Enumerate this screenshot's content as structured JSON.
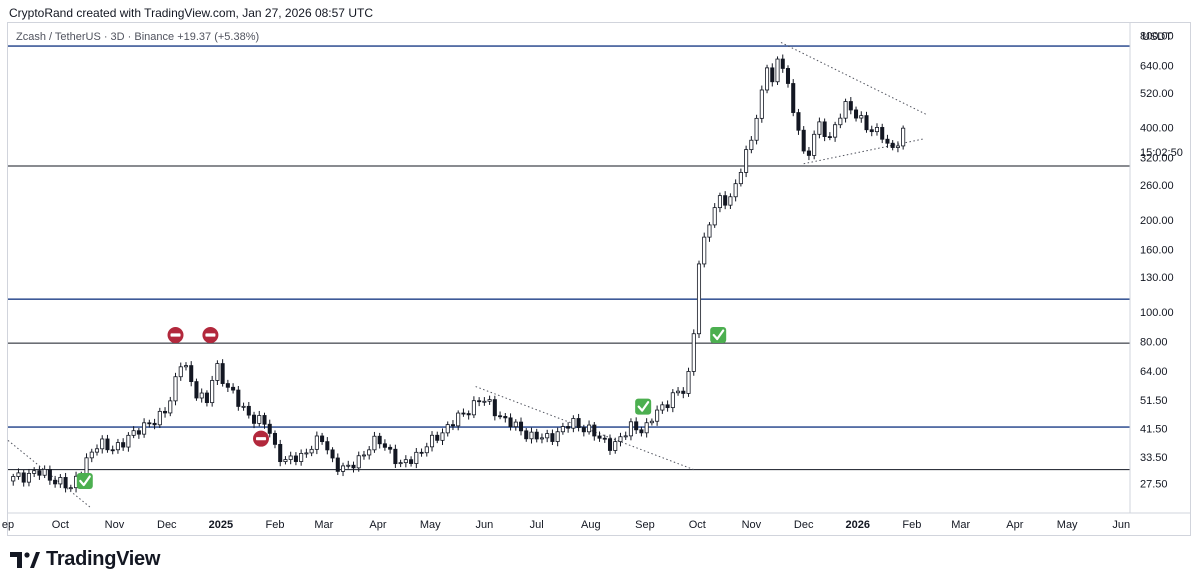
{
  "header": {
    "attribution": "CryptoRand created with TradingView.com, Jan 27, 2026 08:57 UTC"
  },
  "symbol_info": "Zcash / TetherUS · 3D · Binance  +19.37 (+5.38%)",
  "countdown": "15:02:50",
  "footer": {
    "brand": "TradingView"
  },
  "colors": {
    "candle_up_fill": "#ffffff",
    "candle_down_fill": "#131722",
    "blue_level": "#3d5a98",
    "black_level": "#131722",
    "stop_sign": "#b2283c",
    "check": "#4caf50"
  },
  "chart_data": {
    "type": "candlestick",
    "scale": "log",
    "quote_currency": "USDT",
    "y_ticks": [
      "800.00",
      "640.00",
      "520.00",
      "400.00",
      "320.00",
      "260.00",
      "200.00",
      "160.00",
      "130.00",
      "100.00",
      "80.00",
      "64.00",
      "51.50",
      "41.50",
      "33.50",
      "27.50"
    ],
    "ylim": [
      22,
      880
    ],
    "x_range": [
      "2024-09-01",
      "2026-06-06"
    ],
    "x_ticks": [
      {
        "label": "ep",
        "date": "2024-09-01",
        "bold": false
      },
      {
        "label": "Oct",
        "date": "2024-10-01",
        "bold": false
      },
      {
        "label": "Nov",
        "date": "2024-11-01",
        "bold": false
      },
      {
        "label": "Dec",
        "date": "2024-12-01",
        "bold": false
      },
      {
        "label": "2025",
        "date": "2025-01-01",
        "bold": true
      },
      {
        "label": "Feb",
        "date": "2025-02-01",
        "bold": false
      },
      {
        "label": "Mar",
        "date": "2025-03-01",
        "bold": false
      },
      {
        "label": "Apr",
        "date": "2025-04-01",
        "bold": false
      },
      {
        "label": "May",
        "date": "2025-05-01",
        "bold": false
      },
      {
        "label": "Jun",
        "date": "2025-06-01",
        "bold": false
      },
      {
        "label": "Jul",
        "date": "2025-07-01",
        "bold": false
      },
      {
        "label": "Aug",
        "date": "2025-08-01",
        "bold": false
      },
      {
        "label": "Sep",
        "date": "2025-09-01",
        "bold": false
      },
      {
        "label": "Oct",
        "date": "2025-10-01",
        "bold": false
      },
      {
        "label": "Nov",
        "date": "2025-11-01",
        "bold": false
      },
      {
        "label": "Dec",
        "date": "2025-12-01",
        "bold": false
      },
      {
        "label": "2026",
        "date": "2026-01-01",
        "bold": true
      },
      {
        "label": "Feb",
        "date": "2026-02-01",
        "bold": false
      },
      {
        "label": "Mar",
        "date": "2026-03-01",
        "bold": false
      },
      {
        "label": "Apr",
        "date": "2026-04-01",
        "bold": false
      },
      {
        "label": "May",
        "date": "2026-05-01",
        "bold": false
      },
      {
        "label": "Jun",
        "date": "2026-06-01",
        "bold": false
      }
    ],
    "close_path": [
      [
        "2024-09-01",
        28
      ],
      [
        "2024-09-16",
        30
      ],
      [
        "2024-10-01",
        28
      ],
      [
        "2024-10-07",
        26
      ],
      [
        "2024-10-14",
        32
      ],
      [
        "2024-10-24",
        37
      ],
      [
        "2024-11-05",
        36
      ],
      [
        "2024-11-14",
        42
      ],
      [
        "2024-11-24",
        43
      ],
      [
        "2024-12-03",
        52
      ],
      [
        "2024-12-10",
        70
      ],
      [
        "2024-12-14",
        61
      ],
      [
        "2024-12-18",
        55
      ],
      [
        "2024-12-24",
        50
      ],
      [
        "2024-12-29",
        68
      ],
      [
        "2025-01-04",
        58
      ],
      [
        "2025-01-11",
        50
      ],
      [
        "2025-01-20",
        45
      ],
      [
        "2025-01-28",
        42
      ],
      [
        "2025-02-02",
        35
      ],
      [
        "2025-02-08",
        32
      ],
      [
        "2025-02-16",
        34
      ],
      [
        "2025-02-23",
        37
      ],
      [
        "2025-03-01",
        38
      ],
      [
        "2025-03-07",
        32
      ],
      [
        "2025-03-14",
        30
      ],
      [
        "2025-03-22",
        34
      ],
      [
        "2025-04-01",
        38
      ],
      [
        "2025-04-07",
        36
      ],
      [
        "2025-04-14",
        31
      ],
      [
        "2025-04-22",
        34
      ],
      [
        "2025-05-01",
        37
      ],
      [
        "2025-05-10",
        42
      ],
      [
        "2025-05-20",
        46
      ],
      [
        "2025-05-28",
        52
      ],
      [
        "2025-06-03",
        50
      ],
      [
        "2025-06-10",
        46
      ],
      [
        "2025-06-18",
        42
      ],
      [
        "2025-06-26",
        40
      ],
      [
        "2025-07-05",
        38
      ],
      [
        "2025-07-14",
        41
      ],
      [
        "2025-07-22",
        43
      ],
      [
        "2025-07-30",
        42
      ],
      [
        "2025-08-06",
        38
      ],
      [
        "2025-08-14",
        37
      ],
      [
        "2025-08-20",
        39
      ],
      [
        "2025-08-25",
        43
      ],
      [
        "2025-09-01",
        41
      ],
      [
        "2025-09-08",
        47
      ],
      [
        "2025-09-16",
        53
      ],
      [
        "2025-09-24",
        55
      ],
      [
        "2025-09-28",
        70
      ],
      [
        "2025-10-01",
        140
      ],
      [
        "2025-10-04",
        160
      ],
      [
        "2025-10-08",
        195
      ],
      [
        "2025-10-14",
        240
      ],
      [
        "2025-10-20",
        230
      ],
      [
        "2025-10-26",
        290
      ],
      [
        "2025-11-01",
        380
      ],
      [
        "2025-11-06",
        470
      ],
      [
        "2025-11-10",
        640
      ],
      [
        "2025-11-13",
        560
      ],
      [
        "2025-11-17",
        720
      ],
      [
        "2025-11-20",
        620
      ],
      [
        "2025-11-24",
        460
      ],
      [
        "2025-11-28",
        400
      ],
      [
        "2025-12-02",
        310
      ],
      [
        "2025-12-06",
        370
      ],
      [
        "2025-12-10",
        400
      ],
      [
        "2025-12-16",
        370
      ],
      [
        "2025-12-20",
        430
      ],
      [
        "2025-12-26",
        470
      ],
      [
        "2025-12-31",
        440
      ],
      [
        "2026-01-04",
        430
      ],
      [
        "2026-01-09",
        380
      ],
      [
        "2026-01-14",
        390
      ],
      [
        "2026-01-19",
        345
      ],
      [
        "2026-01-24",
        355
      ],
      [
        "2026-01-27",
        378
      ]
    ],
    "horizontal_levels": [
      {
        "price": 740,
        "color": "blue"
      },
      {
        "price": 300,
        "color": "black"
      },
      {
        "price": 110,
        "color": "blue"
      },
      {
        "price": 79,
        "color": "black"
      },
      {
        "price": 42,
        "color": "blue"
      },
      {
        "price": 30.5,
        "color": "black"
      }
    ],
    "trendlines": [
      {
        "from": [
          "2024-09-01",
          38
        ],
        "to": [
          "2024-10-18",
          23
        ]
      },
      {
        "from": [
          "2025-05-27",
          57
        ],
        "to": [
          "2025-09-29",
          30.5
        ]
      },
      {
        "from": [
          "2025-11-18",
          760
        ],
        "to": [
          "2026-02-10",
          440
        ]
      },
      {
        "from": [
          "2025-12-01",
          305
        ],
        "to": [
          "2026-02-08",
          368
        ]
      }
    ],
    "markers": [
      {
        "type": "stop",
        "date": "2024-12-06",
        "price": 84
      },
      {
        "type": "stop",
        "date": "2024-12-26",
        "price": 84
      },
      {
        "type": "stop",
        "date": "2025-01-24",
        "price": 38.5
      },
      {
        "type": "check",
        "date": "2024-10-15",
        "price": 28
      },
      {
        "type": "check",
        "date": "2025-08-31",
        "price": 49
      },
      {
        "type": "check",
        "date": "2025-10-13",
        "price": 84
      }
    ]
  }
}
